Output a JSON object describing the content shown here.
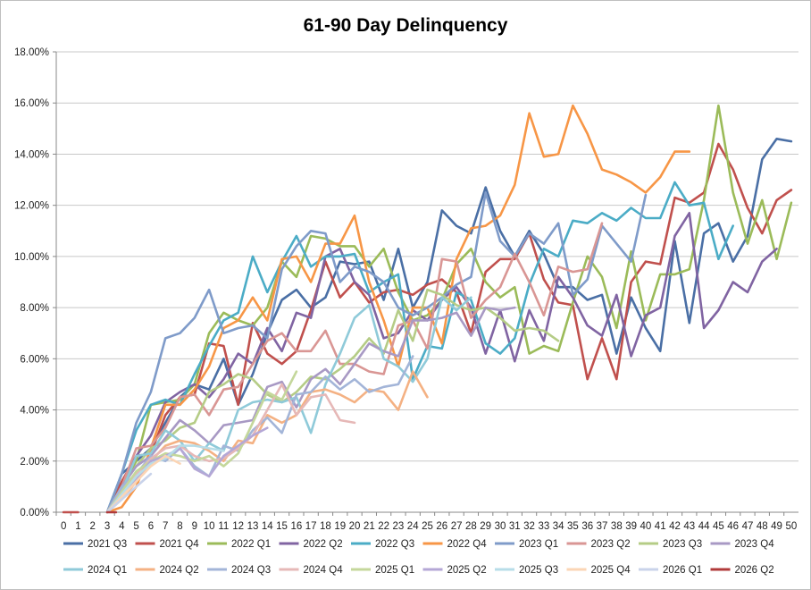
{
  "chart_data": {
    "type": "line",
    "title": "61-90 Day Delinquency",
    "xlabel": "",
    "ylabel": "",
    "x": [
      0,
      1,
      2,
      3,
      4,
      5,
      6,
      7,
      8,
      9,
      10,
      11,
      12,
      13,
      14,
      15,
      16,
      17,
      18,
      19,
      20,
      21,
      22,
      23,
      24,
      25,
      26,
      27,
      28,
      29,
      30,
      31,
      32,
      33,
      34,
      35,
      36,
      37,
      38,
      39,
      40,
      41,
      42,
      43,
      44,
      45,
      46,
      47,
      48,
      49,
      50
    ],
    "y_ticks": [
      "0.00%",
      "2.00%",
      "4.00%",
      "6.00%",
      "8.00%",
      "10.00%",
      "12.00%",
      "14.00%",
      "16.00%",
      "18.00%"
    ],
    "ylim": [
      0,
      18
    ],
    "y_unit": "%",
    "grid": "horizontal",
    "legend_position": "bottom",
    "series": [
      {
        "name": "2021 Q3",
        "color": "#4a6fa5",
        "values": [
          null,
          null,
          null,
          0,
          1.5,
          2.0,
          2.5,
          3.5,
          4.5,
          5.0,
          4.8,
          6.0,
          4.2,
          5.4,
          7.0,
          8.3,
          8.7,
          8.0,
          8.4,
          9.8,
          9.7,
          9.8,
          8.3,
          10.3,
          8.0,
          9.0,
          11.8,
          11.2,
          10.9,
          12.7,
          11.0,
          10.0,
          11.0,
          10.1,
          8.8,
          8.8,
          8.3,
          8.5,
          6.2,
          8.4,
          7.2,
          6.3,
          10.6,
          7.4,
          10.9,
          11.3,
          9.8,
          10.8,
          13.8,
          14.6,
          14.5
        ]
      },
      {
        "name": "2021 Q4",
        "color": "#c0504d",
        "values": [
          0,
          0,
          null,
          0,
          1.2,
          2.2,
          2.3,
          3.8,
          4.5,
          4.6,
          6.6,
          6.5,
          4.2,
          7.4,
          6.2,
          5.8,
          6.3,
          7.9,
          9.8,
          8.4,
          9.0,
          8.2,
          8.6,
          8.7,
          8.5,
          8.9,
          9.1,
          8.6,
          7.0,
          9.4,
          9.9,
          9.9,
          10.9,
          9.1,
          8.2,
          8.1,
          5.2,
          6.8,
          5.2,
          9.0,
          9.8,
          9.7,
          12.3,
          12.1,
          12.5,
          14.4,
          13.4,
          11.9,
          10.9,
          12.2,
          12.6
        ]
      },
      {
        "name": "2022 Q1",
        "color": "#9bbb59",
        "values": [
          null,
          null,
          null,
          0,
          1.0,
          2.0,
          4.2,
          4.3,
          4.4,
          5.0,
          7.0,
          7.8,
          7.5,
          7.3,
          8.0,
          9.8,
          9.2,
          10.8,
          10.7,
          10.4,
          10.4,
          9.6,
          10.3,
          8.6,
          7.5,
          7.7,
          8.3,
          9.7,
          10.3,
          9.0,
          8.4,
          8.8,
          6.2,
          6.5,
          6.3,
          8.2,
          10.0,
          9.2,
          7.2,
          10.2,
          7.5,
          9.3,
          9.3,
          9.5,
          12.2,
          15.9,
          12.5,
          10.5,
          12.2,
          9.9,
          12.1
        ]
      },
      {
        "name": "2022 Q2",
        "color": "#8064a2",
        "values": [
          null,
          null,
          null,
          0,
          1.0,
          2.2,
          3.0,
          4.3,
          4.7,
          5.0,
          4.5,
          5.2,
          6.2,
          5.8,
          7.2,
          6.3,
          7.8,
          7.6,
          10.0,
          10.3,
          9.0,
          8.5,
          6.8,
          7.0,
          7.9,
          7.5,
          8.3,
          8.8,
          8.0,
          6.2,
          7.9,
          5.9,
          7.9,
          6.7,
          9.2,
          8.4,
          7.3,
          6.9,
          8.5,
          6.1,
          7.7,
          8.0,
          10.8,
          11.7,
          7.2,
          7.9,
          9.0,
          8.6,
          9.8,
          10.3,
          null
        ]
      },
      {
        "name": "2022 Q3",
        "color": "#4bacc6",
        "values": [
          null,
          null,
          null,
          0,
          1.5,
          3.2,
          4.2,
          4.4,
          4.2,
          5.4,
          6.5,
          7.5,
          7.8,
          10.0,
          8.6,
          9.8,
          10.8,
          9.6,
          10.0,
          10.0,
          10.1,
          8.6,
          9.0,
          9.3,
          5.2,
          6.5,
          6.4,
          8.6,
          8.3,
          6.6,
          6.2,
          6.8,
          8.9,
          10.3,
          10.0,
          11.4,
          11.3,
          11.7,
          11.4,
          11.9,
          11.5,
          11.5,
          12.9,
          12.0,
          12.1,
          9.9,
          11.2,
          null,
          null,
          null,
          null
        ]
      },
      {
        "name": "2022 Q4",
        "color": "#f79646",
        "values": [
          null,
          null,
          null,
          0,
          0.2,
          1.0,
          2.5,
          4.2,
          4.2,
          4.8,
          5.7,
          7.2,
          7.5,
          8.4,
          7.5,
          9.9,
          10.0,
          9.0,
          10.5,
          10.5,
          11.6,
          9.0,
          7.5,
          5.7,
          8.0,
          8.0,
          6.6,
          9.9,
          11.1,
          11.2,
          11.6,
          12.8,
          15.6,
          13.9,
          14.0,
          15.9,
          14.8,
          13.4,
          13.2,
          12.9,
          12.5,
          13.1,
          14.1,
          14.1,
          null,
          null,
          null,
          null,
          null,
          null,
          null
        ]
      },
      {
        "name": "2023 Q1",
        "color": "#7f9bc9",
        "values": [
          null,
          null,
          null,
          0,
          1.5,
          3.5,
          4.7,
          6.8,
          7.0,
          7.6,
          8.7,
          7.0,
          7.2,
          7.3,
          6.8,
          9.5,
          10.4,
          11.0,
          10.9,
          9.0,
          9.6,
          9.4,
          9.0,
          8.0,
          7.7,
          8.0,
          8.4,
          8.9,
          9.2,
          12.5,
          10.6,
          10.0,
          10.9,
          10.5,
          11.3,
          8.5,
          9.1,
          11.2,
          10.5,
          9.8,
          12.4,
          null,
          null,
          null,
          null,
          null,
          null,
          null,
          null,
          null,
          null
        ]
      },
      {
        "name": "2023 Q2",
        "color": "#d99694",
        "values": [
          null,
          null,
          null,
          0,
          1.0,
          2.5,
          2.6,
          3.3,
          4.5,
          4.6,
          3.8,
          4.8,
          4.9,
          5.8,
          6.7,
          7.0,
          6.3,
          6.3,
          7.1,
          5.8,
          5.8,
          5.5,
          5.4,
          7.3,
          7.5,
          6.4,
          9.9,
          9.8,
          7.6,
          8.3,
          8.8,
          10.1,
          9.0,
          7.7,
          9.6,
          9.4,
          9.5,
          11.3,
          null,
          null,
          null,
          null,
          null,
          null,
          null,
          null,
          null,
          null,
          null,
          null,
          null
        ]
      },
      {
        "name": "2023 Q3",
        "color": "#b5cc86",
        "values": [
          null,
          null,
          null,
          0,
          1.0,
          1.8,
          2.5,
          2.8,
          3.3,
          3.5,
          4.7,
          5.0,
          5.4,
          5.2,
          4.6,
          4.3,
          4.7,
          5.3,
          5.2,
          5.6,
          6.1,
          6.8,
          6.2,
          7.9,
          6.7,
          8.7,
          8.5,
          8.1,
          7.9,
          8.0,
          7.6,
          7.1,
          7.2,
          7.1,
          6.7,
          null,
          null,
          null,
          null,
          null,
          null,
          null,
          null,
          null,
          null,
          null,
          null,
          null,
          null,
          null,
          null
        ]
      },
      {
        "name": "2023 Q4",
        "color": "#a899c4",
        "values": [
          null,
          null,
          null,
          0,
          1.0,
          1.8,
          2.2,
          2.9,
          3.6,
          3.2,
          2.7,
          3.4,
          3.5,
          3.6,
          4.9,
          5.1,
          4.1,
          5.2,
          5.6,
          5.0,
          5.8,
          6.6,
          6.3,
          6.1,
          7.5,
          7.5,
          7.6,
          7.8,
          6.9,
          8.0,
          7.9,
          8.0,
          null,
          null,
          null,
          null,
          null,
          null,
          null,
          null,
          null,
          null,
          null,
          null,
          null,
          null,
          null,
          null,
          null,
          null,
          null
        ]
      },
      {
        "name": "2024 Q1",
        "color": "#8fcad9",
        "values": [
          null,
          null,
          null,
          0,
          0.8,
          2.2,
          2.3,
          3.2,
          2.8,
          2.0,
          2.7,
          2.4,
          4.0,
          4.3,
          4.4,
          4.3,
          4.5,
          3.1,
          5.0,
          6.2,
          7.6,
          8.1,
          6.0,
          5.7,
          5.1,
          6.0,
          8.4,
          7.9,
          8.4,
          null,
          null,
          null,
          null,
          null,
          null,
          null,
          null,
          null,
          null,
          null,
          null,
          null,
          null,
          null,
          null,
          null,
          null,
          null,
          null,
          null,
          null
        ]
      },
      {
        "name": "2024 Q2",
        "color": "#f4b183",
        "values": [
          null,
          null,
          null,
          0,
          0.5,
          1.2,
          2.0,
          2.6,
          2.8,
          2.7,
          2.4,
          2.0,
          2.8,
          2.7,
          3.8,
          3.5,
          3.8,
          4.7,
          4.8,
          4.6,
          4.3,
          4.8,
          4.7,
          4.0,
          5.5,
          4.5,
          null,
          null,
          null,
          null,
          null,
          null,
          null,
          null,
          null,
          null,
          null,
          null,
          null,
          null,
          null,
          null,
          null,
          null,
          null,
          null,
          null,
          null,
          null,
          null,
          null
        ]
      },
      {
        "name": "2024 Q3",
        "color": "#a3b5d8",
        "values": [
          null,
          null,
          null,
          0,
          1.0,
          1.5,
          2.2,
          2.0,
          2.5,
          1.8,
          1.4,
          2.6,
          2.4,
          3.2,
          3.7,
          3.1,
          4.6,
          4.7,
          5.3,
          4.8,
          5.2,
          4.7,
          4.9,
          5.0,
          6.1,
          null,
          null,
          null,
          null,
          null,
          null,
          null,
          null,
          null,
          null,
          null,
          null,
          null,
          null,
          null,
          null,
          null,
          null,
          null,
          null,
          null,
          null,
          null,
          null,
          null,
          null
        ]
      },
      {
        "name": "2024 Q4",
        "color": "#e6b8b7",
        "values": [
          null,
          null,
          null,
          0,
          0.8,
          1.5,
          2.1,
          2.5,
          2.6,
          2.2,
          2.0,
          2.1,
          2.5,
          3.0,
          4.0,
          5.0,
          3.8,
          4.5,
          4.6,
          3.6,
          3.5,
          null,
          null,
          null,
          null,
          null,
          null,
          null,
          null,
          null,
          null,
          null,
          null,
          null,
          null,
          null,
          null,
          null,
          null,
          null,
          null,
          null,
          null,
          null,
          null,
          null,
          null,
          null,
          null,
          null,
          null
        ]
      },
      {
        "name": "2025 Q1",
        "color": "#c4d79b",
        "values": [
          null,
          null,
          null,
          0,
          0.8,
          1.6,
          2.0,
          2.3,
          2.2,
          2.0,
          2.2,
          1.8,
          2.3,
          3.5,
          4.7,
          4.4,
          5.5,
          null,
          null,
          null,
          null,
          null,
          null,
          null,
          null,
          null,
          null,
          null,
          null,
          null,
          null,
          null,
          null,
          null,
          null,
          null,
          null,
          null,
          null,
          null,
          null,
          null,
          null,
          null,
          null,
          null,
          null,
          null,
          null,
          null,
          null
        ]
      },
      {
        "name": "2025 Q2",
        "color": "#b4a7d6",
        "values": [
          null,
          null,
          null,
          0,
          0.7,
          1.3,
          2.0,
          2.2,
          2.5,
          1.7,
          1.4,
          2.2,
          2.6,
          3.0,
          3.3,
          null,
          null,
          null,
          null,
          null,
          null,
          null,
          null,
          null,
          null,
          null,
          null,
          null,
          null,
          null,
          null,
          null,
          null,
          null,
          null,
          null,
          null,
          null,
          null,
          null,
          null,
          null,
          null,
          null,
          null,
          null,
          null,
          null,
          null,
          null,
          null
        ]
      },
      {
        "name": "2025 Q3",
        "color": "#b7dde8",
        "values": [
          null,
          null,
          null,
          0,
          0.7,
          1.4,
          1.9,
          2.1,
          2.6,
          2.6,
          2.5,
          2.4,
          null,
          null,
          null,
          null,
          null,
          null,
          null,
          null,
          null,
          null,
          null,
          null,
          null,
          null,
          null,
          null,
          null,
          null,
          null,
          null,
          null,
          null,
          null,
          null,
          null,
          null,
          null,
          null,
          null,
          null,
          null,
          null,
          null,
          null,
          null,
          null,
          null,
          null,
          null
        ]
      },
      {
        "name": "2025 Q4",
        "color": "#fbd5b5",
        "values": [
          null,
          null,
          null,
          0,
          0.6,
          1.2,
          1.8,
          2.2,
          1.9,
          null,
          null,
          null,
          null,
          null,
          null,
          null,
          null,
          null,
          null,
          null,
          null,
          null,
          null,
          null,
          null,
          null,
          null,
          null,
          null,
          null,
          null,
          null,
          null,
          null,
          null,
          null,
          null,
          null,
          null,
          null,
          null,
          null,
          null,
          null,
          null,
          null,
          null,
          null,
          null,
          null,
          null
        ]
      },
      {
        "name": "2026 Q1",
        "color": "#c9d3ea",
        "values": [
          null,
          null,
          null,
          0,
          0.5,
          1.0,
          1.5,
          null,
          null,
          null,
          null,
          null,
          null,
          null,
          null,
          null,
          null,
          null,
          null,
          null,
          null,
          null,
          null,
          null,
          null,
          null,
          null,
          null,
          null,
          null,
          null,
          null,
          null,
          null,
          null,
          null,
          null,
          null,
          null,
          null,
          null,
          null,
          null,
          null,
          null,
          null,
          null,
          null,
          null,
          null,
          null
        ]
      },
      {
        "name": "2026 Q2",
        "color": "#b03a3a",
        "values": [
          null,
          null,
          null,
          0,
          null,
          null,
          null,
          null,
          null,
          null,
          null,
          null,
          null,
          null,
          null,
          null,
          null,
          null,
          null,
          null,
          null,
          null,
          null,
          null,
          null,
          null,
          null,
          null,
          null,
          null,
          null,
          null,
          null,
          null,
          null,
          null,
          null,
          null,
          null,
          null,
          null,
          null,
          null,
          null,
          null,
          null,
          null,
          null,
          null,
          null,
          null
        ]
      }
    ]
  }
}
